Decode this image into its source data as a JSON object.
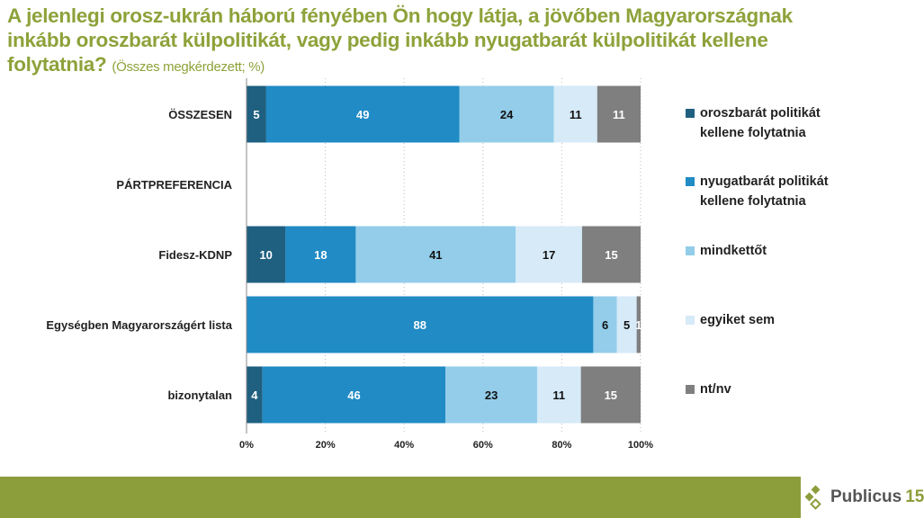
{
  "chart_data": {
    "type": "bar",
    "orientation": "horizontal",
    "stacked": "percent",
    "title": "A jelenlegi orosz-ukrán háború fényében Ön hogy látja, a jövőben Magyarországnak inkább oroszbarát külpolitikát, vagy pedig inkább nyugatbarát külpolitikát kellene folytatnia?",
    "subtitle": "(Összes megkérdezett; %)",
    "categories": [
      "ÖSSZESEN",
      "PÁRTPREFERENCIA",
      "Fidesz-KDNP",
      "Egységben Magyarországért lista",
      "bizonytalan"
    ],
    "series": [
      {
        "name": "oroszbarát politikát kellene folytatnia",
        "color": "#1f5f80",
        "values": [
          5,
          null,
          10,
          0,
          4
        ]
      },
      {
        "name": "nyugatbarát politikát kellene folytatnia",
        "color": "#208bc5",
        "values": [
          49,
          null,
          18,
          88,
          46
        ]
      },
      {
        "name": "mindkettőt",
        "color": "#93cdea",
        "values": [
          24,
          null,
          41,
          6,
          23
        ]
      },
      {
        "name": "egyiket sem",
        "color": "#d6eaf8",
        "values": [
          11,
          null,
          17,
          5,
          11
        ]
      },
      {
        "name": "nt/nv",
        "color": "#7f7f7f",
        "values": [
          11,
          null,
          15,
          1,
          15
        ]
      }
    ],
    "xticks": [
      "0%",
      "20%",
      "40%",
      "60%",
      "80%",
      "100%"
    ],
    "xlim": [
      0,
      100
    ],
    "legend": "right",
    "grid": true
  },
  "title": {
    "main": "A jelenlegi orosz-ukrán háború fényében Ön hogy látja, a jövőben Magyarországnak inkább oroszbarát külpolitikát, vagy pedig inkább nyugatbarát külpolitikát kellene folytatnia?",
    "sub": "(Összes megkérdezett; %)"
  },
  "legend_lines": [
    [
      "oroszbarát politikát",
      "kellene folytatnia"
    ],
    [
      "nyugatbarát politikát",
      "kellene folytatnia"
    ],
    [
      "mindkettőt"
    ],
    [
      "egyiket sem"
    ],
    [
      "nt/nv"
    ]
  ],
  "logo": {
    "text": "Publicus",
    "num": "15"
  }
}
